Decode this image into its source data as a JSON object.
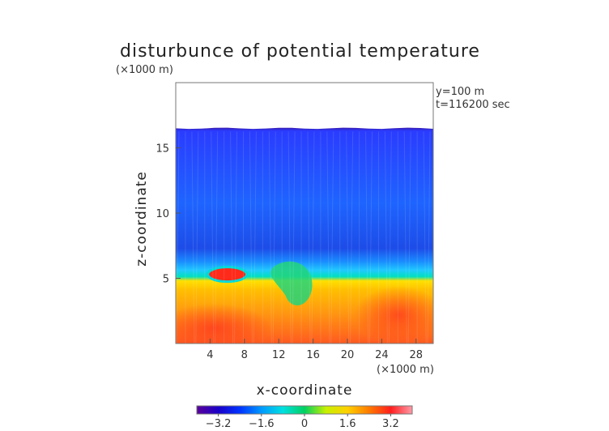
{
  "chart_data": {
    "type": "heatmap",
    "title": "disturbunce of potential temperature",
    "y_unit": "(×1000 m)",
    "x_unit": "(×1000 m)",
    "xlabel": "x-coordinate",
    "ylabel": "z-coordinate",
    "annotations": [
      "y=100 m",
      "t=116200 sec"
    ],
    "xlim": [
      0,
      30
    ],
    "ylim": [
      0,
      20
    ],
    "x_ticks": [
      4,
      8,
      12,
      16,
      20,
      24,
      28
    ],
    "x_tick_labels": [
      "4",
      "8",
      "12",
      "16",
      "20",
      "24",
      "28"
    ],
    "y_ticks": [
      5,
      10,
      15
    ],
    "y_tick_labels": [
      "5",
      "10",
      "15"
    ],
    "colorbar": {
      "range": [
        -4,
        4
      ],
      "ticks": [
        -3.2,
        -1.6,
        0,
        1.6,
        3.2
      ],
      "tick_labels": [
        "−3.2",
        "−1.6",
        "0",
        "1.6",
        "3.2"
      ],
      "colors": [
        "#5a009a",
        "#1a00c8",
        "#0033ff",
        "#0099ff",
        "#00e0e0",
        "#00d060",
        "#c8f000",
        "#ffd000",
        "#ff7a00",
        "#ff1e1e",
        "#ff9aa8"
      ]
    },
    "field_top_z": 16.5
  }
}
